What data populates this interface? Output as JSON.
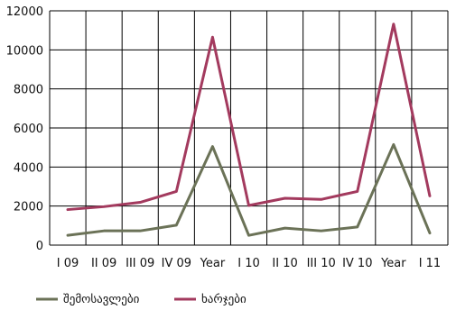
{
  "chart_data": {
    "type": "line",
    "categories": [
      "I 09",
      "II 09",
      "III 09",
      "IV 09",
      "Year",
      "I 10",
      "II 10",
      "III 10",
      "IV 10",
      "Year",
      "I 11"
    ],
    "series": [
      {
        "name": "შემოსავლები",
        "color": "#6b7257",
        "values": [
          500,
          730,
          730,
          1020,
          5050,
          500,
          870,
          730,
          930,
          5150,
          620
        ]
      },
      {
        "name": "ხარჯები",
        "color": "#a33a5e",
        "values": [
          1820,
          1970,
          2190,
          2750,
          10650,
          2030,
          2400,
          2340,
          2750,
          11320,
          2520
        ]
      }
    ],
    "ylim": [
      0,
      12000
    ],
    "yticks": [
      0,
      2000,
      4000,
      6000,
      8000,
      10000,
      12000
    ],
    "grid": true,
    "legend": "bottom"
  }
}
